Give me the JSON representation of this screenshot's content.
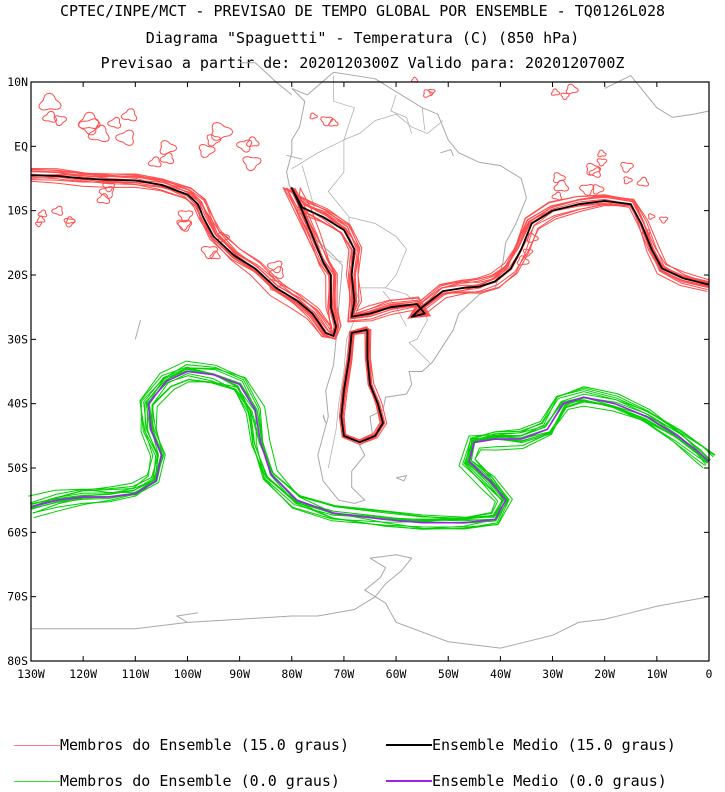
{
  "titles": {
    "line1": "CPTEC/INPE/MCT - PREVISAO DE TEMPO GLOBAL POR ENSEMBLE - TQ0126L028",
    "line2": "Diagrama \"Spaguetti\" - Temperatura (C) (850 hPa)",
    "line3": "Previsao a partir de: 2020120300Z  Valido para: 2020120700Z"
  },
  "chart_data": {
    "type": "spaghetti-map",
    "region": "South America / South Atlantic",
    "xlim": [
      -130,
      0
    ],
    "ylim": [
      -80,
      10
    ],
    "x_ticks": [
      {
        "value": -130,
        "label": "130W"
      },
      {
        "value": -120,
        "label": "120W"
      },
      {
        "value": -110,
        "label": "110W"
      },
      {
        "value": -100,
        "label": "100W"
      },
      {
        "value": -90,
        "label": "90W"
      },
      {
        "value": -80,
        "label": "80W"
      },
      {
        "value": -70,
        "label": "70W"
      },
      {
        "value": -60,
        "label": "60W"
      },
      {
        "value": -50,
        "label": "50W"
      },
      {
        "value": -40,
        "label": "40W"
      },
      {
        "value": -30,
        "label": "30W"
      },
      {
        "value": -20,
        "label": "20W"
      },
      {
        "value": -10,
        "label": "10W"
      },
      {
        "value": 0,
        "label": "0"
      }
    ],
    "y_ticks": [
      {
        "value": 10,
        "label": "10N"
      },
      {
        "value": 0,
        "label": "EQ"
      },
      {
        "value": -10,
        "label": "10S"
      },
      {
        "value": -20,
        "label": "20S"
      },
      {
        "value": -30,
        "label": "30S"
      },
      {
        "value": -40,
        "label": "40S"
      },
      {
        "value": -50,
        "label": "50S"
      },
      {
        "value": -60,
        "label": "60S"
      },
      {
        "value": -70,
        "label": "70S"
      },
      {
        "value": -80,
        "label": "80S"
      }
    ],
    "series": [
      {
        "name": "Ensemble Medio (15.0 graus)",
        "color": "#000000",
        "segments": [
          [
            [
              -130,
              -4.5
            ],
            [
              -125,
              -4.6
            ],
            [
              -120,
              -5
            ],
            [
              -115,
              -5.2
            ],
            [
              -110,
              -5.3
            ],
            [
              -105,
              -6
            ],
            [
              -100,
              -7.5
            ],
            [
              -98,
              -9
            ],
            [
              -97,
              -11
            ],
            [
              -95,
              -14
            ],
            [
              -91,
              -17
            ],
            [
              -87,
              -19
            ],
            [
              -83,
              -22
            ],
            [
              -79,
              -24
            ],
            [
              -76,
              -26
            ],
            [
              -73.5,
              -29
            ],
            [
              -72,
              -29.5
            ],
            [
              -71.5,
              -28
            ],
            [
              -72.5,
              -25
            ],
            [
              -72.5,
              -20
            ],
            [
              -74,
              -18
            ],
            [
              -76,
              -14
            ],
            [
              -78,
              -10
            ],
            [
              -80,
              -6.5
            ],
            [
              -78,
              -9.5
            ],
            [
              -74,
              -11
            ],
            [
              -70,
              -13
            ],
            [
              -68,
              -16
            ],
            [
              -68.5,
              -20
            ],
            [
              -68,
              -24
            ],
            [
              -68.5,
              -26.5
            ],
            [
              -65,
              -26
            ],
            [
              -61,
              -25
            ],
            [
              -56,
              -24.5
            ],
            [
              -54.5,
              -26
            ],
            [
              -57,
              -26.5
            ],
            [
              -55,
              -25
            ],
            [
              -51,
              -22.5
            ],
            [
              -47,
              -22
            ],
            [
              -44,
              -21.8
            ],
            [
              -41,
              -21
            ],
            [
              -38,
              -19
            ],
            [
              -36,
              -16
            ],
            [
              -34,
              -12
            ],
            [
              -30,
              -10
            ],
            [
              -25,
              -9
            ],
            [
              -20,
              -8.5
            ],
            [
              -15,
              -9
            ],
            [
              -13,
              -12
            ],
            [
              -11,
              -16
            ],
            [
              -9,
              -19
            ],
            [
              -5,
              -20.5
            ],
            [
              0,
              -21.5
            ]
          ],
          [
            [
              -65.5,
              -28.5
            ],
            [
              -68.5,
              -29
            ],
            [
              -69,
              -33
            ],
            [
              -70,
              -38
            ],
            [
              -70.5,
              -42
            ],
            [
              -70,
              -45
            ],
            [
              -67,
              -46
            ],
            [
              -64,
              -45
            ],
            [
              -62.5,
              -43
            ],
            [
              -63.5,
              -40
            ],
            [
              -65,
              -37
            ],
            [
              -65.5,
              -33
            ],
            [
              -65.5,
              -28.5
            ]
          ]
        ]
      },
      {
        "name": "Ensemble Medio (0.0 graus)",
        "color": "#a020f0",
        "segments": [
          [
            [
              -130,
              -56
            ],
            [
              -125,
              -55
            ],
            [
              -120,
              -54.5
            ],
            [
              -115,
              -54.5
            ],
            [
              -110,
              -54
            ],
            [
              -106,
              -52
            ],
            [
              -105,
              -48
            ],
            [
              -107,
              -44
            ],
            [
              -107.5,
              -40
            ],
            [
              -104,
              -36.5
            ],
            [
              -100,
              -35
            ],
            [
              -95,
              -35.5
            ],
            [
              -90,
              -37
            ],
            [
              -87,
              -41
            ],
            [
              -86,
              -46
            ],
            [
              -84,
              -51
            ],
            [
              -79,
              -55
            ],
            [
              -72,
              -57
            ],
            [
              -62,
              -58
            ],
            [
              -55,
              -58.5
            ],
            [
              -47,
              -58.5
            ],
            [
              -41,
              -58
            ],
            [
              -39,
              -55
            ],
            [
              -42,
              -52
            ],
            [
              -46,
              -49
            ],
            [
              -45,
              -46
            ],
            [
              -41,
              -45.5
            ],
            [
              -36,
              -45.5
            ],
            [
              -31,
              -44
            ],
            [
              -28,
              -40
            ],
            [
              -24,
              -39
            ],
            [
              -18,
              -40
            ],
            [
              -12,
              -42
            ],
            [
              -6,
              -45
            ],
            [
              -2,
              -47.5
            ],
            [
              0,
              -49
            ]
          ]
        ]
      }
    ],
    "member_bundles": [
      {
        "name": "Membros do Ensemble (15.0 graus)",
        "color": "#ff4d4d",
        "members": 14
      },
      {
        "name": "Membros do Ensemble (0.0 graus)",
        "color": "#00d000",
        "members": 14
      }
    ]
  },
  "legend": {
    "items": [
      {
        "label": "Membros do Ensemble (15.0 graus)",
        "color": "#f08080"
      },
      {
        "label": "Ensemble Medio (15.0 graus)",
        "color": "#000000"
      },
      {
        "label": "Membros do Ensemble (0.0 graus)",
        "color": "#33dd33"
      },
      {
        "label": "Ensemble Medio (0.0 graus)",
        "color": "#a020f0"
      }
    ]
  },
  "colors": {
    "coast": "#a8a8a8",
    "member_red": "#ff4d4d",
    "member_green": "#00d000",
    "mean_black": "#000000",
    "mean_purple": "#a020f0"
  }
}
